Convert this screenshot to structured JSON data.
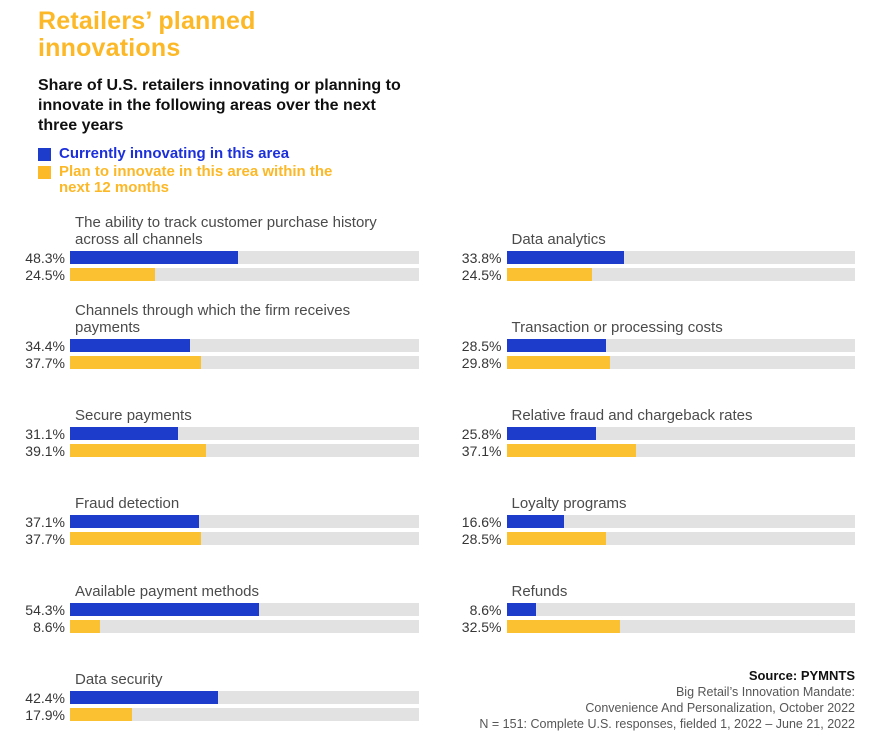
{
  "title": "Retailers’ planned innovations",
  "subtitle": "Share of U.S. retailers innovating or planning to innovate in the following areas over the next three years",
  "legend": [
    {
      "label": "Currently innovating in this area",
      "swatch_color": "#1d3ccb",
      "text_color": "#1b2fdb"
    },
    {
      "label": "Plan to innovate in this area within the next 12 months",
      "swatch_color": "#fcba28",
      "text_color": "#fcb826"
    }
  ],
  "colors": {
    "title_yellow": "#fcb826",
    "text_black": "#101010",
    "bar_blue": "#1d3ccb",
    "bar_yellow": "#fcc130",
    "track_gray": "#e2e2e2",
    "label_gray": "#4b4b4b",
    "value_dark": "#363636",
    "footer_gray": "#565656"
  },
  "chart_data": {
    "type": "bar",
    "orientation": "horizontal",
    "unit": "percent",
    "value_axis_range": [
      0,
      100
    ],
    "grid": false,
    "legend_position": "top-left",
    "series": [
      {
        "key": "current",
        "name": "Currently innovating in this area",
        "color": "#1d3ccb"
      },
      {
        "key": "planned",
        "name": "Plan to innovate in this area within the next 12 months",
        "color": "#fcc130"
      }
    ],
    "columns": {
      "left": [
        {
          "category": "The ability to track customer purchase history across all channels",
          "values": [
            48.3,
            24.5
          ]
        },
        {
          "category": "Channels through which the firm receives payments",
          "values": [
            34.4,
            37.7
          ]
        },
        {
          "category": "Secure payments",
          "values": [
            31.1,
            39.1
          ]
        },
        {
          "category": "Fraud detection",
          "values": [
            37.1,
            37.7
          ]
        },
        {
          "category": "Available payment methods",
          "values": [
            54.3,
            8.6
          ]
        },
        {
          "category": "Data security",
          "values": [
            42.4,
            17.9
          ]
        }
      ],
      "right": [
        {
          "category": "Data analytics",
          "values": [
            33.8,
            24.5
          ]
        },
        {
          "category": "Transaction or processing costs",
          "values": [
            28.5,
            29.8
          ]
        },
        {
          "category": "Relative fraud and chargeback rates",
          "values": [
            25.8,
            37.1
          ]
        },
        {
          "category": "Loyalty programs",
          "values": [
            16.6,
            28.5
          ]
        },
        {
          "category": "Refunds",
          "values": [
            8.6,
            32.5
          ]
        }
      ]
    }
  },
  "footer": {
    "source_label": "Source: PYMNTS",
    "lines": [
      "Big Retail’s Innovation Mandate:",
      "Convenience And Personalization, October 2022",
      "N = 151: Complete U.S. responses, fielded 1, 2022 – June 21, 2022"
    ]
  }
}
